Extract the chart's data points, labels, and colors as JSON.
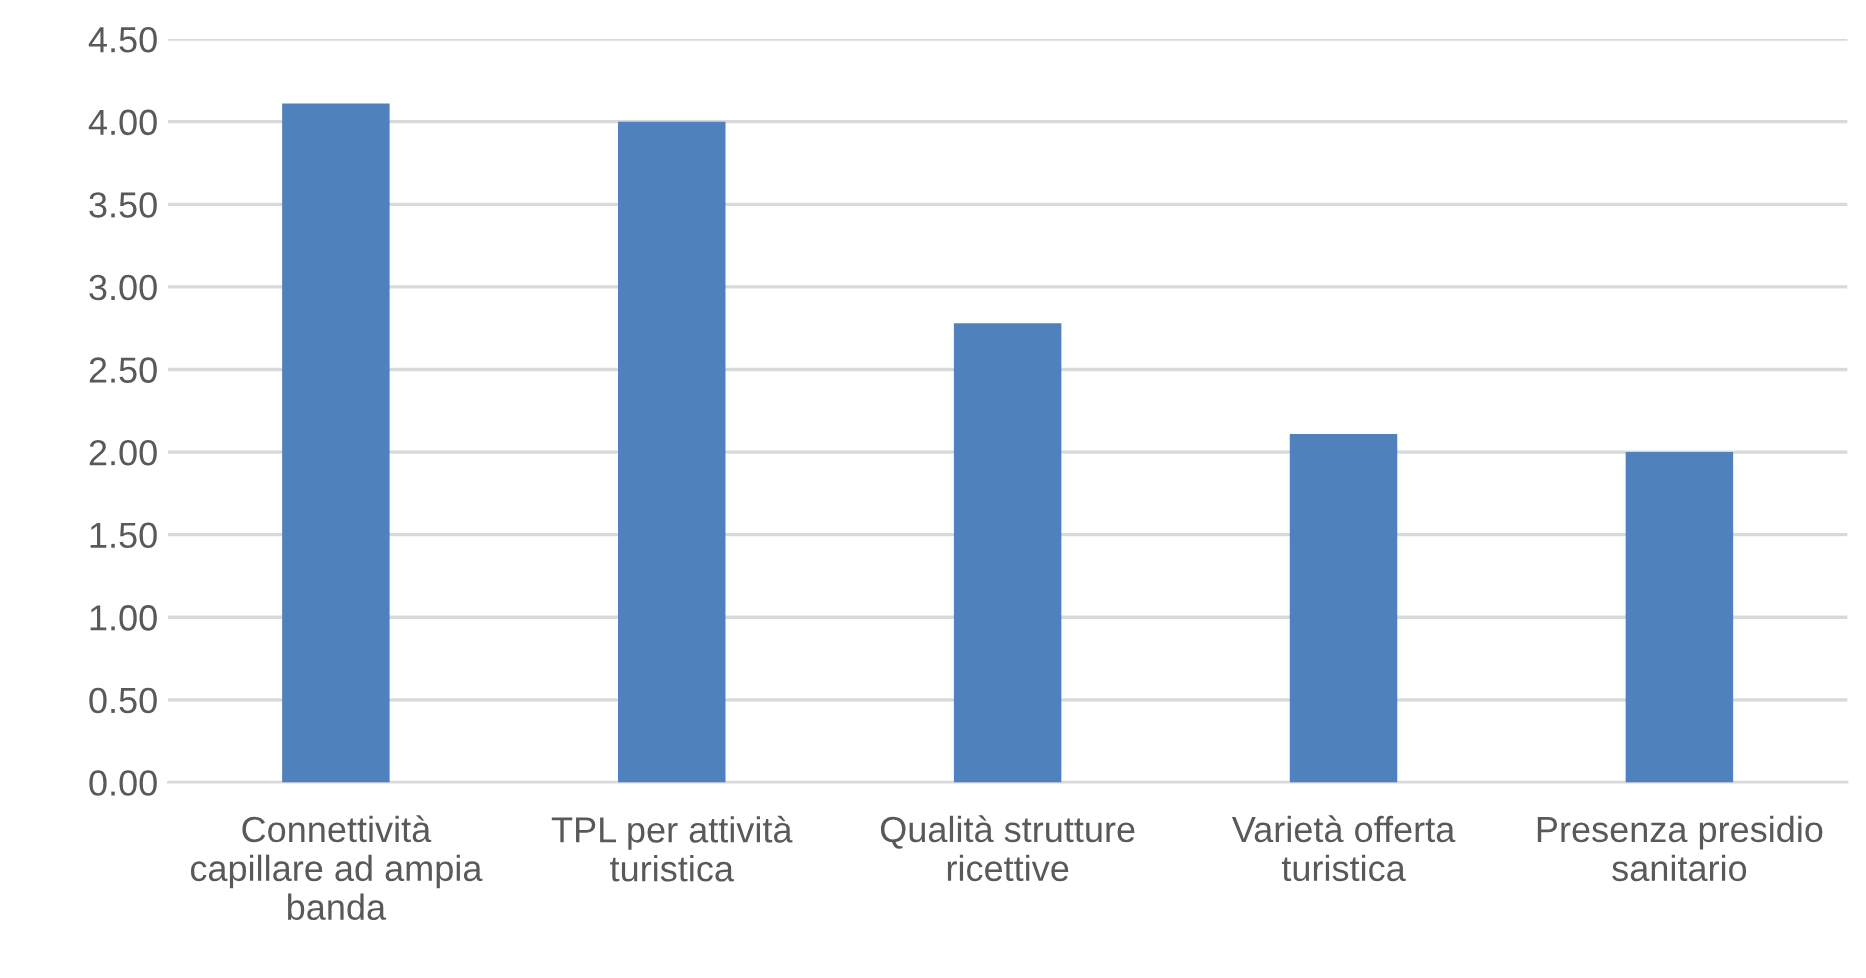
{
  "chart_data": {
    "type": "bar",
    "categories": [
      "Connettività capillare ad ampia banda",
      "TPL per attività turistica",
      "Qualità strutture ricettive",
      "Varietà offerta turistica",
      "Presenza presidio sanitario"
    ],
    "values": [
      4.11,
      4.0,
      2.78,
      2.11,
      2.0
    ],
    "color": "#4f81bd",
    "ylim": [
      0,
      4.5
    ],
    "yticks": [
      {
        "value": 0,
        "label": "0.00"
      },
      {
        "value": 0.5,
        "label": "0.50"
      },
      {
        "value": 1,
        "label": "1.00"
      },
      {
        "value": 1.5,
        "label": "1.50"
      },
      {
        "value": 2,
        "label": "2.00"
      },
      {
        "value": 2.5,
        "label": "2.50"
      },
      {
        "value": 3,
        "label": "3.00"
      },
      {
        "value": 3.5,
        "label": "3.50"
      },
      {
        "value": 4,
        "label": "4.00"
      },
      {
        "value": 4.5,
        "label": "4.50"
      }
    ],
    "grid": "y",
    "legend": false
  }
}
